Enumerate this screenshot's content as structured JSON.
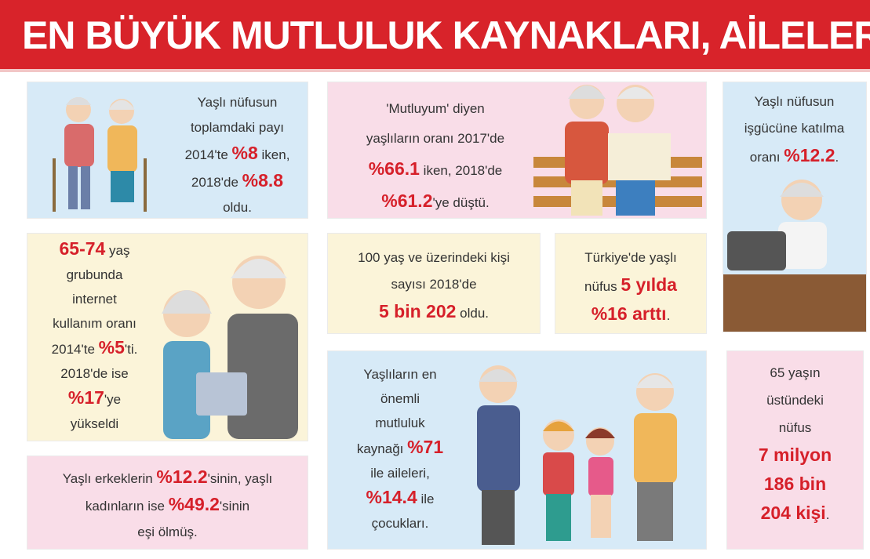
{
  "title": "EN BÜYÜK MUTLULUK KAYNAKLARI, AİLELERİ",
  "boxes": [
    {
      "lines": [
        [
          "Yaşlı nüfusun"
        ],
        [
          "toplamdaki payı"
        ],
        [
          "2014'te ",
          {
            "text": "%8",
            "highlight": true
          },
          " iken,"
        ],
        [
          "2018'de ",
          {
            "text": "%8.8",
            "highlight": true
          }
        ],
        [
          "oldu."
        ]
      ]
    },
    {
      "lines": [
        [
          "'Mutluyum' diyen"
        ],
        [
          "yaşlıların oranı 2017'de"
        ],
        [
          {
            "text": "%66.1",
            "highlight": true
          },
          " iken, 2018'de"
        ],
        [
          {
            "text": "%61.2",
            "highlight": true
          },
          "'ye düştü."
        ]
      ]
    },
    {
      "lines": [
        [
          "Yaşlı nüfusun"
        ],
        [
          "işgücüne katılma"
        ],
        [
          "oranı ",
          {
            "text": "%12.2",
            "highlight": true
          },
          "."
        ]
      ]
    },
    {
      "lines": [
        [
          {
            "text": "65-74",
            "highlight": true
          },
          " yaş"
        ],
        [
          "grubunda"
        ],
        [
          "internet"
        ],
        [
          "kullanım oranı"
        ],
        [
          "2014'te ",
          {
            "text": "%5",
            "highlight": true
          },
          "'ti."
        ],
        [
          "2018'de ise"
        ],
        [
          {
            "text": "%17",
            "highlight": true
          },
          "'ye"
        ],
        [
          "yükseldi"
        ]
      ]
    },
    {
      "lines": [
        [
          "100 yaş ve üzerindeki kişi"
        ],
        [
          "sayısı 2018'de"
        ],
        [
          {
            "text": "5 bin 202",
            "highlight": true
          },
          " oldu."
        ]
      ]
    },
    {
      "lines": [
        [
          "Türkiye'de yaşlı"
        ],
        [
          "nüfus ",
          {
            "text": "5 yılda",
            "highlight": true
          }
        ],
        [
          {
            "text": "%16 arttı",
            "highlight": true
          },
          "."
        ]
      ]
    },
    {
      "lines": [
        [
          "Yaşlı erkeklerin ",
          {
            "text": "%12.2",
            "highlight": true
          },
          "'sinin, yaşlı"
        ],
        [
          "kadınların ise ",
          {
            "text": "%49.2",
            "highlight": true
          },
          "'sinin"
        ],
        [
          "eşi ölmüş."
        ]
      ]
    },
    {
      "lines": [
        [
          "Yaşlıların en"
        ],
        [
          "önemli"
        ],
        [
          "mutluluk"
        ],
        [
          "kaynağı ",
          {
            "text": "%71",
            "highlight": true
          }
        ],
        [
          "ile aileleri,"
        ],
        [
          {
            "text": "%14.4",
            "highlight": true
          },
          " ile"
        ],
        [
          "çocukları."
        ]
      ]
    },
    {
      "lines": [
        [
          "65 yaşın"
        ],
        [
          "üstündeki"
        ],
        [
          "nüfus"
        ],
        [
          {
            "text": "7 milyon",
            "highlight": true
          }
        ],
        [
          {
            "text": "186 bin",
            "highlight": true
          }
        ],
        [
          {
            "text": "204 kişi",
            "highlight": true
          },
          "."
        ]
      ]
    }
  ]
}
